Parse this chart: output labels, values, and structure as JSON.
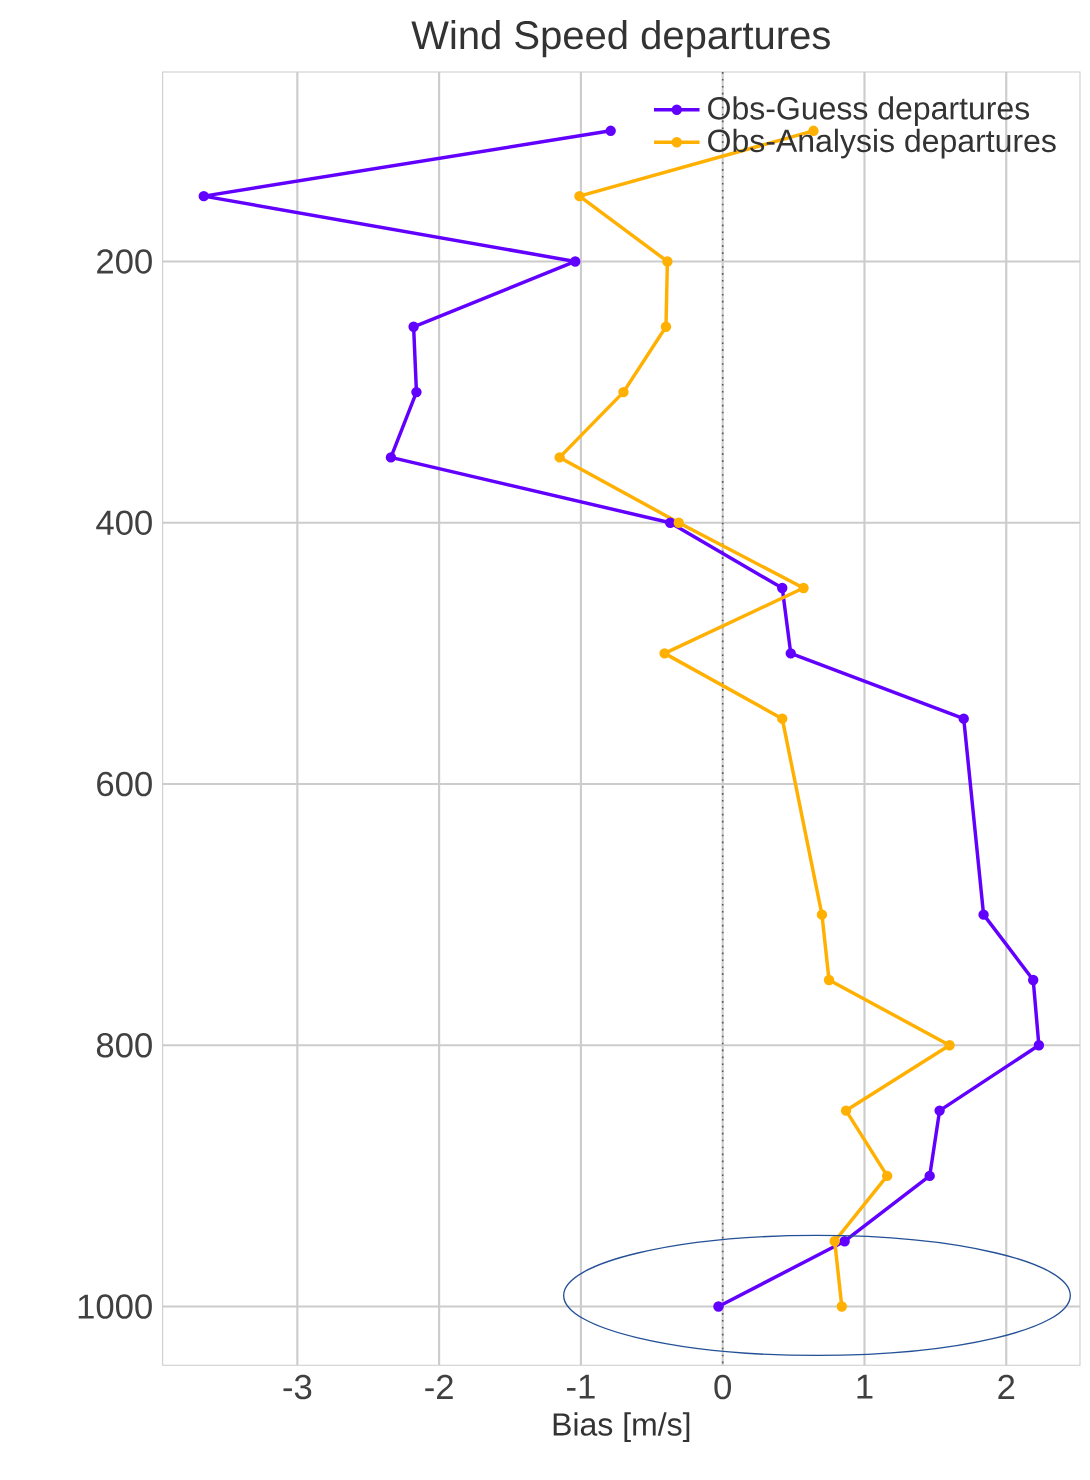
{
  "chart_data": {
    "type": "line",
    "title": "Wind Speed departures",
    "xlabel": "Bias [m/s]",
    "series": [
      {
        "name": "Obs-Guess departures",
        "color": "#6200ff",
        "x": [
          -0.79,
          -3.66,
          -1.04,
          -2.18,
          -2.16,
          -2.34,
          -0.37,
          0.42,
          0.48,
          1.7,
          1.84,
          2.19,
          2.23,
          1.53,
          1.46,
          0.86,
          -0.03
        ],
        "values": [
          100,
          150,
          200,
          250,
          300,
          350,
          400,
          450,
          500,
          550,
          700,
          750,
          800,
          850,
          900,
          950,
          1000
        ]
      },
      {
        "name": "Obs-Analysis departures",
        "color": "#ffb000",
        "x": [
          0.64,
          -1.01,
          -0.39,
          -0.4,
          -0.7,
          -1.15,
          -0.31,
          0.57,
          -0.41,
          0.42,
          0.7,
          0.75,
          1.6,
          0.87,
          1.16,
          0.79,
          0.84
        ],
        "values": [
          100,
          150,
          200,
          250,
          300,
          350,
          400,
          450,
          500,
          550,
          700,
          750,
          800,
          850,
          900,
          950,
          1000
        ]
      }
    ],
    "xlim": [
      -3.95,
      2.52
    ],
    "ylim": [
      1045,
      55
    ],
    "xticks": [
      -3,
      -2,
      -1,
      0,
      1,
      2
    ],
    "yticks": [
      200,
      400,
      600,
      800,
      1000
    ],
    "ref_lines": [
      {
        "axis": "x",
        "value": 0,
        "color": "#555555",
        "line_style": "dotted"
      }
    ],
    "grid": true,
    "legend": "top right",
    "marker": "circle",
    "line_style": "solid"
  }
}
